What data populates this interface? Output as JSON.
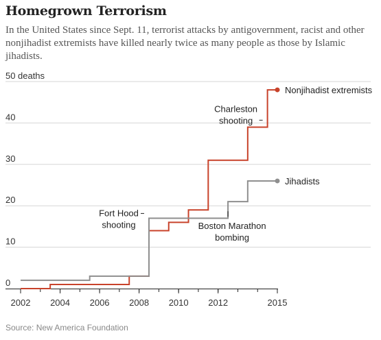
{
  "title": "Homegrown Terrorism",
  "subtitle": "In the United States since Sept. 11, terrorist attacks by antigovernment, racist and other nonjihadist extremists have killed nearly twice as many people as those by Islamic jihadists.",
  "source": "Source: New America Foundation",
  "colors": {
    "nonjihadist": "#c8422a",
    "jihadist": "#8f8f8f",
    "grid": "#d6d6d6",
    "axis": "#222222",
    "text": "#333333"
  },
  "chart_data": {
    "type": "line",
    "step": "after",
    "xlim": [
      2002,
      2015
    ],
    "ylim": [
      0,
      50
    ],
    "x_ticks": [
      2002,
      2004,
      2006,
      2008,
      2010,
      2012,
      2015
    ],
    "x_tick_labels": [
      "2002",
      "2004",
      "2006",
      "2008",
      "2010",
      "2012",
      "2015"
    ],
    "y_ticks": [
      0,
      10,
      20,
      30,
      40,
      50
    ],
    "y_tick_labels": [
      "0",
      "10",
      "20",
      "30",
      "40",
      "50"
    ],
    "y_unit_label": "deaths",
    "grid": true,
    "series": [
      {
        "name": "Nonjihadist extremists",
        "color_key": "nonjihadist",
        "end_marker": true,
        "points": [
          [
            2002.0,
            0
          ],
          [
            2003.5,
            1
          ],
          [
            2007.5,
            3
          ],
          [
            2008.5,
            14
          ],
          [
            2009.5,
            16
          ],
          [
            2010.5,
            19
          ],
          [
            2011.5,
            31
          ],
          [
            2013.5,
            39
          ],
          [
            2014.5,
            48
          ],
          [
            2015.0,
            48
          ]
        ]
      },
      {
        "name": "Jihadists",
        "color_key": "jihadist",
        "end_marker": true,
        "points": [
          [
            2002.0,
            2
          ],
          [
            2005.5,
            3
          ],
          [
            2008.5,
            17
          ],
          [
            2012.5,
            21
          ],
          [
            2013.5,
            26
          ],
          [
            2015.0,
            26
          ]
        ]
      }
    ],
    "annotations": [
      {
        "lines": [
          "Charleston",
          "shooting"
        ],
        "year": 2014.5,
        "value": 42
      },
      {
        "lines": [
          "Fort Hood",
          "shooting"
        ],
        "year": 2008.5,
        "value": 15
      },
      {
        "lines": [
          "Boston Marathon",
          "bombing"
        ],
        "year": 2012.5,
        "value": 12
      }
    ]
  }
}
